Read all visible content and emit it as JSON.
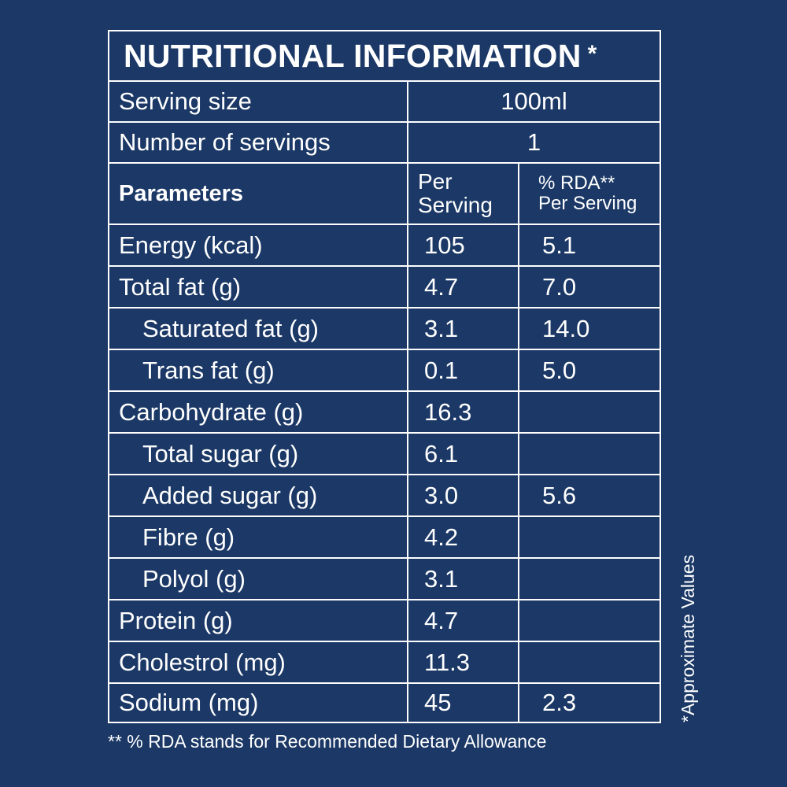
{
  "title": "NUTRITIONAL INFORMATION",
  "title_mark": "*",
  "serving_size": {
    "label": "Serving size",
    "value": "100ml"
  },
  "servings": {
    "label": "Number of servings",
    "value": "1"
  },
  "header": {
    "parameters": "Parameters",
    "per_line1": "Per",
    "per_line2": "Serving",
    "rda_line1": "% RDA**",
    "rda_line2": "Per Serving"
  },
  "rows": [
    {
      "label": "Energy (kcal)",
      "per": "105",
      "rda": "5.1"
    },
    {
      "label": "Total fat (g)",
      "per": "4.7",
      "rda": "7.0"
    },
    {
      "label": "Saturated fat (g)",
      "per": "3.1",
      "rda": "14.0"
    },
    {
      "label": "Trans fat (g)",
      "per": "0.1",
      "rda": "5.0"
    },
    {
      "label": "Carbohydrate (g)",
      "per": "16.3",
      "rda": ""
    },
    {
      "label": "Total sugar (g)",
      "per": "6.1",
      "rda": ""
    },
    {
      "label": "Added sugar (g)",
      "per": "3.0",
      "rda": "5.6"
    },
    {
      "label": "Fibre (g)",
      "per": "4.2",
      "rda": ""
    },
    {
      "label": "Polyol (g)",
      "per": "3.1",
      "rda": ""
    },
    {
      "label": "Protein (g)",
      "per": "4.7",
      "rda": ""
    },
    {
      "label": "Cholestrol (mg)",
      "per": "11.3",
      "rda": ""
    },
    {
      "label": "Sodium (mg)",
      "per": "45",
      "rda": "2.3"
    }
  ],
  "side_note": "*Approximate Values",
  "footnote": "** % RDA stands for Recommended Dietary Allowance",
  "colors": {
    "background": "#1b3866",
    "foreground": "#ffffff"
  }
}
